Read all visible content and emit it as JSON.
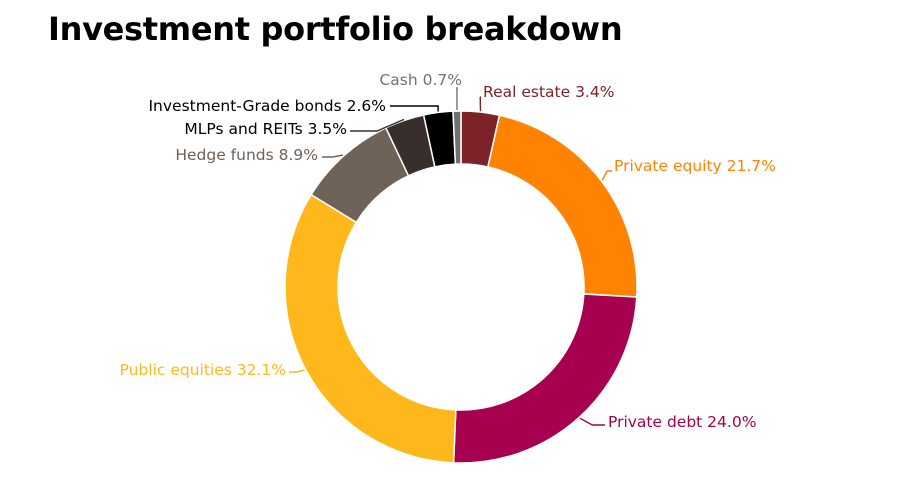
{
  "chart_data": {
    "type": "pie",
    "style": "donut",
    "title": "Investment portfolio breakdown",
    "unit": "%",
    "slices": [
      {
        "name": "Real estate",
        "value": 3.4,
        "color": "#7B2328"
      },
      {
        "name": "Private equity",
        "value": 21.7,
        "color": "#FF8200"
      },
      {
        "name": "Private debt",
        "value": 24.0,
        "color": "#A6004E"
      },
      {
        "name": "Public equities",
        "value": 32.1,
        "color": "#FFB81C"
      },
      {
        "name": "Hedge funds",
        "value": 8.9,
        "color": "#6E6259"
      },
      {
        "name": "MLPs and REITs",
        "value": 3.5,
        "color": "#382F2D"
      },
      {
        "name": "Investment-Grade bonds",
        "value": 2.6,
        "color": "#000000"
      },
      {
        "name": "Cash",
        "value": 0.7,
        "color": "#707372"
      }
    ],
    "labels": [
      "Real estate 3.4%",
      "Private equity 21.7%",
      "Private debt 24.0%",
      "Public equities 32.1%",
      "Hedge funds 8.9%",
      "MLPs and REITs 3.5%",
      "Investment-Grade bonds 2.6%",
      "Cash 0.7%"
    ]
  }
}
